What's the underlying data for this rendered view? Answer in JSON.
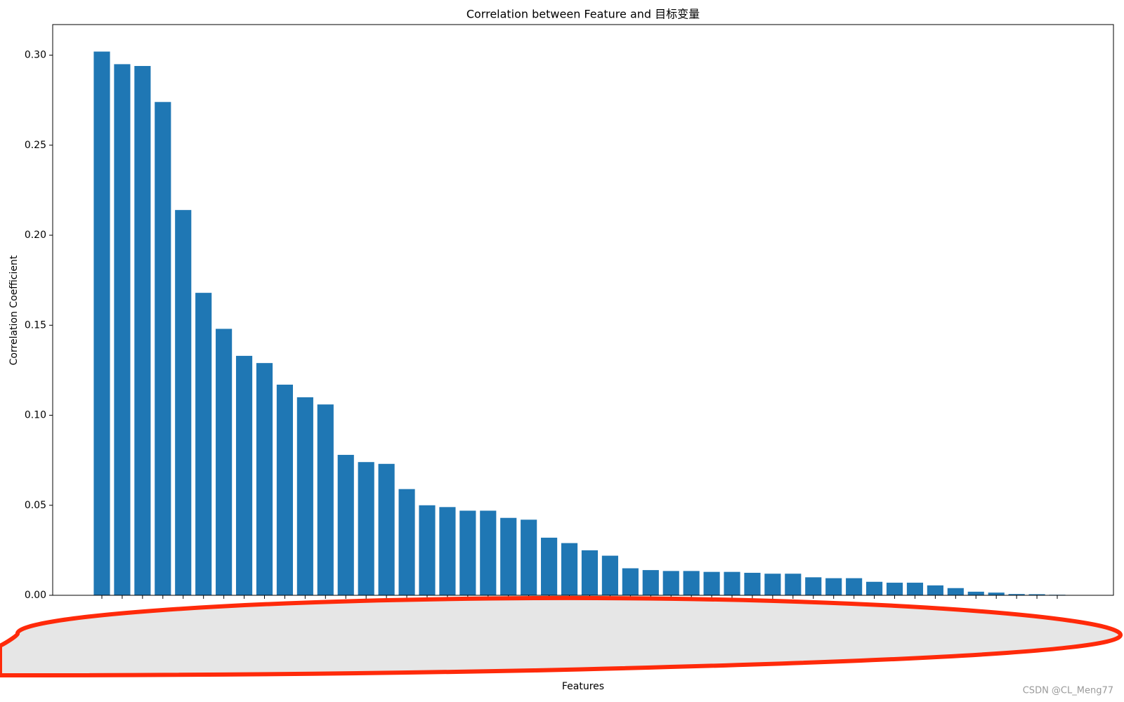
{
  "chart_data": {
    "type": "bar",
    "title": "Correlation between Feature and 目标变量",
    "x_label": "Features",
    "y_label": "Correlation Coefficient",
    "watermark": "CSDN @CL_Meng77",
    "color": "#1f77b4",
    "categories": [
      null,
      null,
      null,
      null,
      null,
      null,
      null,
      null,
      null,
      null,
      null,
      null,
      null,
      null,
      null,
      null,
      null,
      null,
      null,
      null,
      null,
      null,
      null,
      null,
      null,
      null,
      null,
      null,
      null,
      null,
      null,
      null,
      null,
      null,
      null,
      null,
      null,
      null,
      null,
      null,
      null,
      null,
      null,
      null,
      null,
      null,
      null,
      null
    ],
    "values": [
      0.302,
      0.295,
      0.294,
      0.274,
      0.214,
      0.168,
      0.148,
      0.133,
      0.129,
      0.117,
      0.11,
      0.106,
      0.078,
      0.074,
      0.073,
      0.059,
      0.05,
      0.049,
      0.047,
      0.047,
      0.043,
      0.042,
      0.032,
      0.029,
      0.025,
      0.022,
      0.015,
      0.014,
      0.0135,
      0.0135,
      0.013,
      0.013,
      0.0125,
      0.012,
      0.012,
      0.01,
      0.0095,
      0.0095,
      0.0075,
      0.007,
      0.007,
      0.0055,
      0.004,
      0.002,
      0.0015,
      0.0007,
      0.0006,
      0.0003
    ],
    "ylim": [
      0,
      0.317
    ],
    "yticks": [
      {
        "value": 0,
        "label": "0.00"
      },
      {
        "value": 0.05,
        "label": "0.05"
      },
      {
        "value": 0.1,
        "label": "0.10"
      },
      {
        "value": 0.15,
        "label": "0.15"
      },
      {
        "value": 0.2,
        "label": "0.20"
      },
      {
        "value": 0.25,
        "label": "0.25"
      },
      {
        "value": 0.3,
        "label": "0.30"
      }
    ],
    "grid": false
  }
}
